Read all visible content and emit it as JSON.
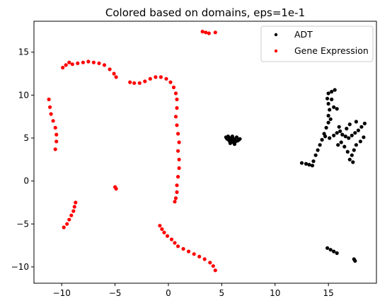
{
  "chart_data": {
    "type": "scatter",
    "title": "Colored based on domains, eps=1e-1",
    "xlabel": "",
    "ylabel": "",
    "xlim": [
      -12.6,
      19.5
    ],
    "ylim": [
      -11.9,
      18.6
    ],
    "xticks": [
      -10,
      -5,
      0,
      5,
      10,
      15
    ],
    "yticks": [
      -10,
      -5,
      0,
      5,
      10,
      15
    ],
    "grid": false,
    "legend_position": "top-right",
    "series": [
      {
        "name": "ADT",
        "color": "#000000",
        "marker": "dot",
        "points": [
          [
            5.4,
            5.1
          ],
          [
            5.6,
            5.2
          ],
          [
            5.8,
            5.0
          ],
          [
            6.0,
            5.2
          ],
          [
            6.2,
            4.9
          ],
          [
            6.4,
            5.1
          ],
          [
            6.6,
            4.8
          ],
          [
            5.5,
            4.9
          ],
          [
            5.7,
            4.7
          ],
          [
            5.9,
            4.6
          ],
          [
            6.1,
            4.5
          ],
          [
            6.3,
            4.6
          ],
          [
            6.5,
            4.7
          ],
          [
            6.7,
            4.9
          ],
          [
            6.0,
            4.8
          ],
          [
            5.8,
            4.4
          ],
          [
            6.2,
            4.3
          ],
          [
            12.5,
            2.1
          ],
          [
            12.9,
            2.0
          ],
          [
            13.2,
            1.9
          ],
          [
            13.5,
            1.8
          ],
          [
            13.6,
            2.3
          ],
          [
            13.8,
            3.0
          ],
          [
            14.0,
            3.6
          ],
          [
            14.2,
            4.2
          ],
          [
            14.4,
            4.8
          ],
          [
            14.6,
            5.5
          ],
          [
            14.8,
            6.2
          ],
          [
            15.0,
            6.8
          ],
          [
            15.0,
            7.6
          ],
          [
            15.1,
            8.3
          ],
          [
            15.0,
            9.0
          ],
          [
            14.9,
            9.6
          ],
          [
            15.0,
            10.2
          ],
          [
            15.3,
            10.4
          ],
          [
            15.6,
            10.6
          ],
          [
            15.3,
            9.5
          ],
          [
            15.5,
            8.6
          ],
          [
            15.8,
            8.4
          ],
          [
            15.2,
            7.2
          ],
          [
            14.7,
            5.2
          ],
          [
            15.1,
            5.0
          ],
          [
            15.5,
            5.3
          ],
          [
            15.8,
            5.6
          ],
          [
            16.1,
            5.8
          ],
          [
            16.3,
            5.4
          ],
          [
            16.6,
            5.2
          ],
          [
            16.9,
            5.0
          ],
          [
            17.2,
            5.3
          ],
          [
            17.5,
            5.6
          ],
          [
            17.8,
            5.9
          ],
          [
            18.1,
            6.3
          ],
          [
            18.4,
            6.7
          ],
          [
            17.6,
            6.9
          ],
          [
            18.3,
            5.1
          ],
          [
            18.0,
            4.6
          ],
          [
            17.6,
            4.2
          ],
          [
            17.4,
            3.6
          ],
          [
            17.2,
            3.0
          ],
          [
            17.0,
            2.5
          ],
          [
            17.3,
            2.2
          ],
          [
            16.8,
            3.4
          ],
          [
            16.5,
            4.0
          ],
          [
            16.2,
            4.5
          ],
          [
            15.9,
            4.2
          ],
          [
            16.0,
            6.3
          ],
          [
            16.7,
            6.1
          ],
          [
            17.0,
            6.6
          ],
          [
            14.9,
            -7.8
          ],
          [
            15.2,
            -8.0
          ],
          [
            15.5,
            -8.2
          ],
          [
            15.8,
            -8.4
          ],
          [
            17.4,
            -9.1
          ],
          [
            17.5,
            -9.3
          ]
        ]
      },
      {
        "name": "Gene Expression",
        "color": "#ff0000",
        "marker": "dot",
        "points": [
          [
            3.2,
            17.4
          ],
          [
            3.5,
            17.3
          ],
          [
            3.8,
            17.2
          ],
          [
            4.4,
            17.3
          ],
          [
            -9.9,
            13.2
          ],
          [
            -9.6,
            13.5
          ],
          [
            -9.3,
            13.8
          ],
          [
            -9.0,
            13.6
          ],
          [
            -8.5,
            13.7
          ],
          [
            -8.0,
            13.8
          ],
          [
            -7.5,
            13.9
          ],
          [
            -7.0,
            13.8
          ],
          [
            -6.5,
            13.7
          ],
          [
            -6.0,
            13.5
          ],
          [
            -5.5,
            13.0
          ],
          [
            -5.1,
            12.5
          ],
          [
            -4.9,
            12.1
          ],
          [
            -3.6,
            11.5
          ],
          [
            -3.2,
            11.4
          ],
          [
            -2.7,
            11.4
          ],
          [
            -2.2,
            11.6
          ],
          [
            -1.7,
            11.9
          ],
          [
            -1.2,
            12.1
          ],
          [
            -0.7,
            12.1
          ],
          [
            -0.2,
            11.9
          ],
          [
            0.2,
            11.5
          ],
          [
            0.5,
            10.9
          ],
          [
            0.7,
            10.2
          ],
          [
            0.8,
            9.5
          ],
          [
            0.8,
            8.5
          ],
          [
            0.7,
            7.5
          ],
          [
            0.8,
            6.5
          ],
          [
            0.9,
            5.5
          ],
          [
            1.0,
            4.5
          ],
          [
            0.9,
            3.5
          ],
          [
            1.0,
            2.5
          ],
          [
            1.0,
            1.5
          ],
          [
            0.9,
            0.5
          ],
          [
            0.8,
            -0.5
          ],
          [
            0.8,
            -1.3
          ],
          [
            0.7,
            -2.0
          ],
          [
            0.6,
            -2.4
          ],
          [
            -11.2,
            9.5
          ],
          [
            -11.1,
            8.6
          ],
          [
            -11.0,
            7.8
          ],
          [
            -10.8,
            7.0
          ],
          [
            -10.6,
            6.2
          ],
          [
            -10.5,
            5.4
          ],
          [
            -10.5,
            4.6
          ],
          [
            -10.6,
            3.7
          ],
          [
            -5.0,
            -0.7
          ],
          [
            -4.9,
            -0.9
          ],
          [
            -8.7,
            -2.5
          ],
          [
            -8.8,
            -3.0
          ],
          [
            -8.9,
            -3.5
          ],
          [
            -9.1,
            -4.0
          ],
          [
            -9.3,
            -4.5
          ],
          [
            -9.5,
            -5.0
          ],
          [
            -9.8,
            -5.4
          ],
          [
            -0.8,
            -5.2
          ],
          [
            -0.6,
            -5.6
          ],
          [
            -0.4,
            -6.0
          ],
          [
            -0.1,
            -6.4
          ],
          [
            0.3,
            -6.8
          ],
          [
            0.6,
            -7.2
          ],
          [
            0.9,
            -7.6
          ],
          [
            1.4,
            -7.9
          ],
          [
            1.9,
            -8.2
          ],
          [
            2.4,
            -8.5
          ],
          [
            2.9,
            -8.8
          ],
          [
            3.4,
            -9.1
          ],
          [
            3.9,
            -9.5
          ],
          [
            4.2,
            -9.9
          ],
          [
            4.4,
            -10.4
          ]
        ]
      }
    ]
  }
}
